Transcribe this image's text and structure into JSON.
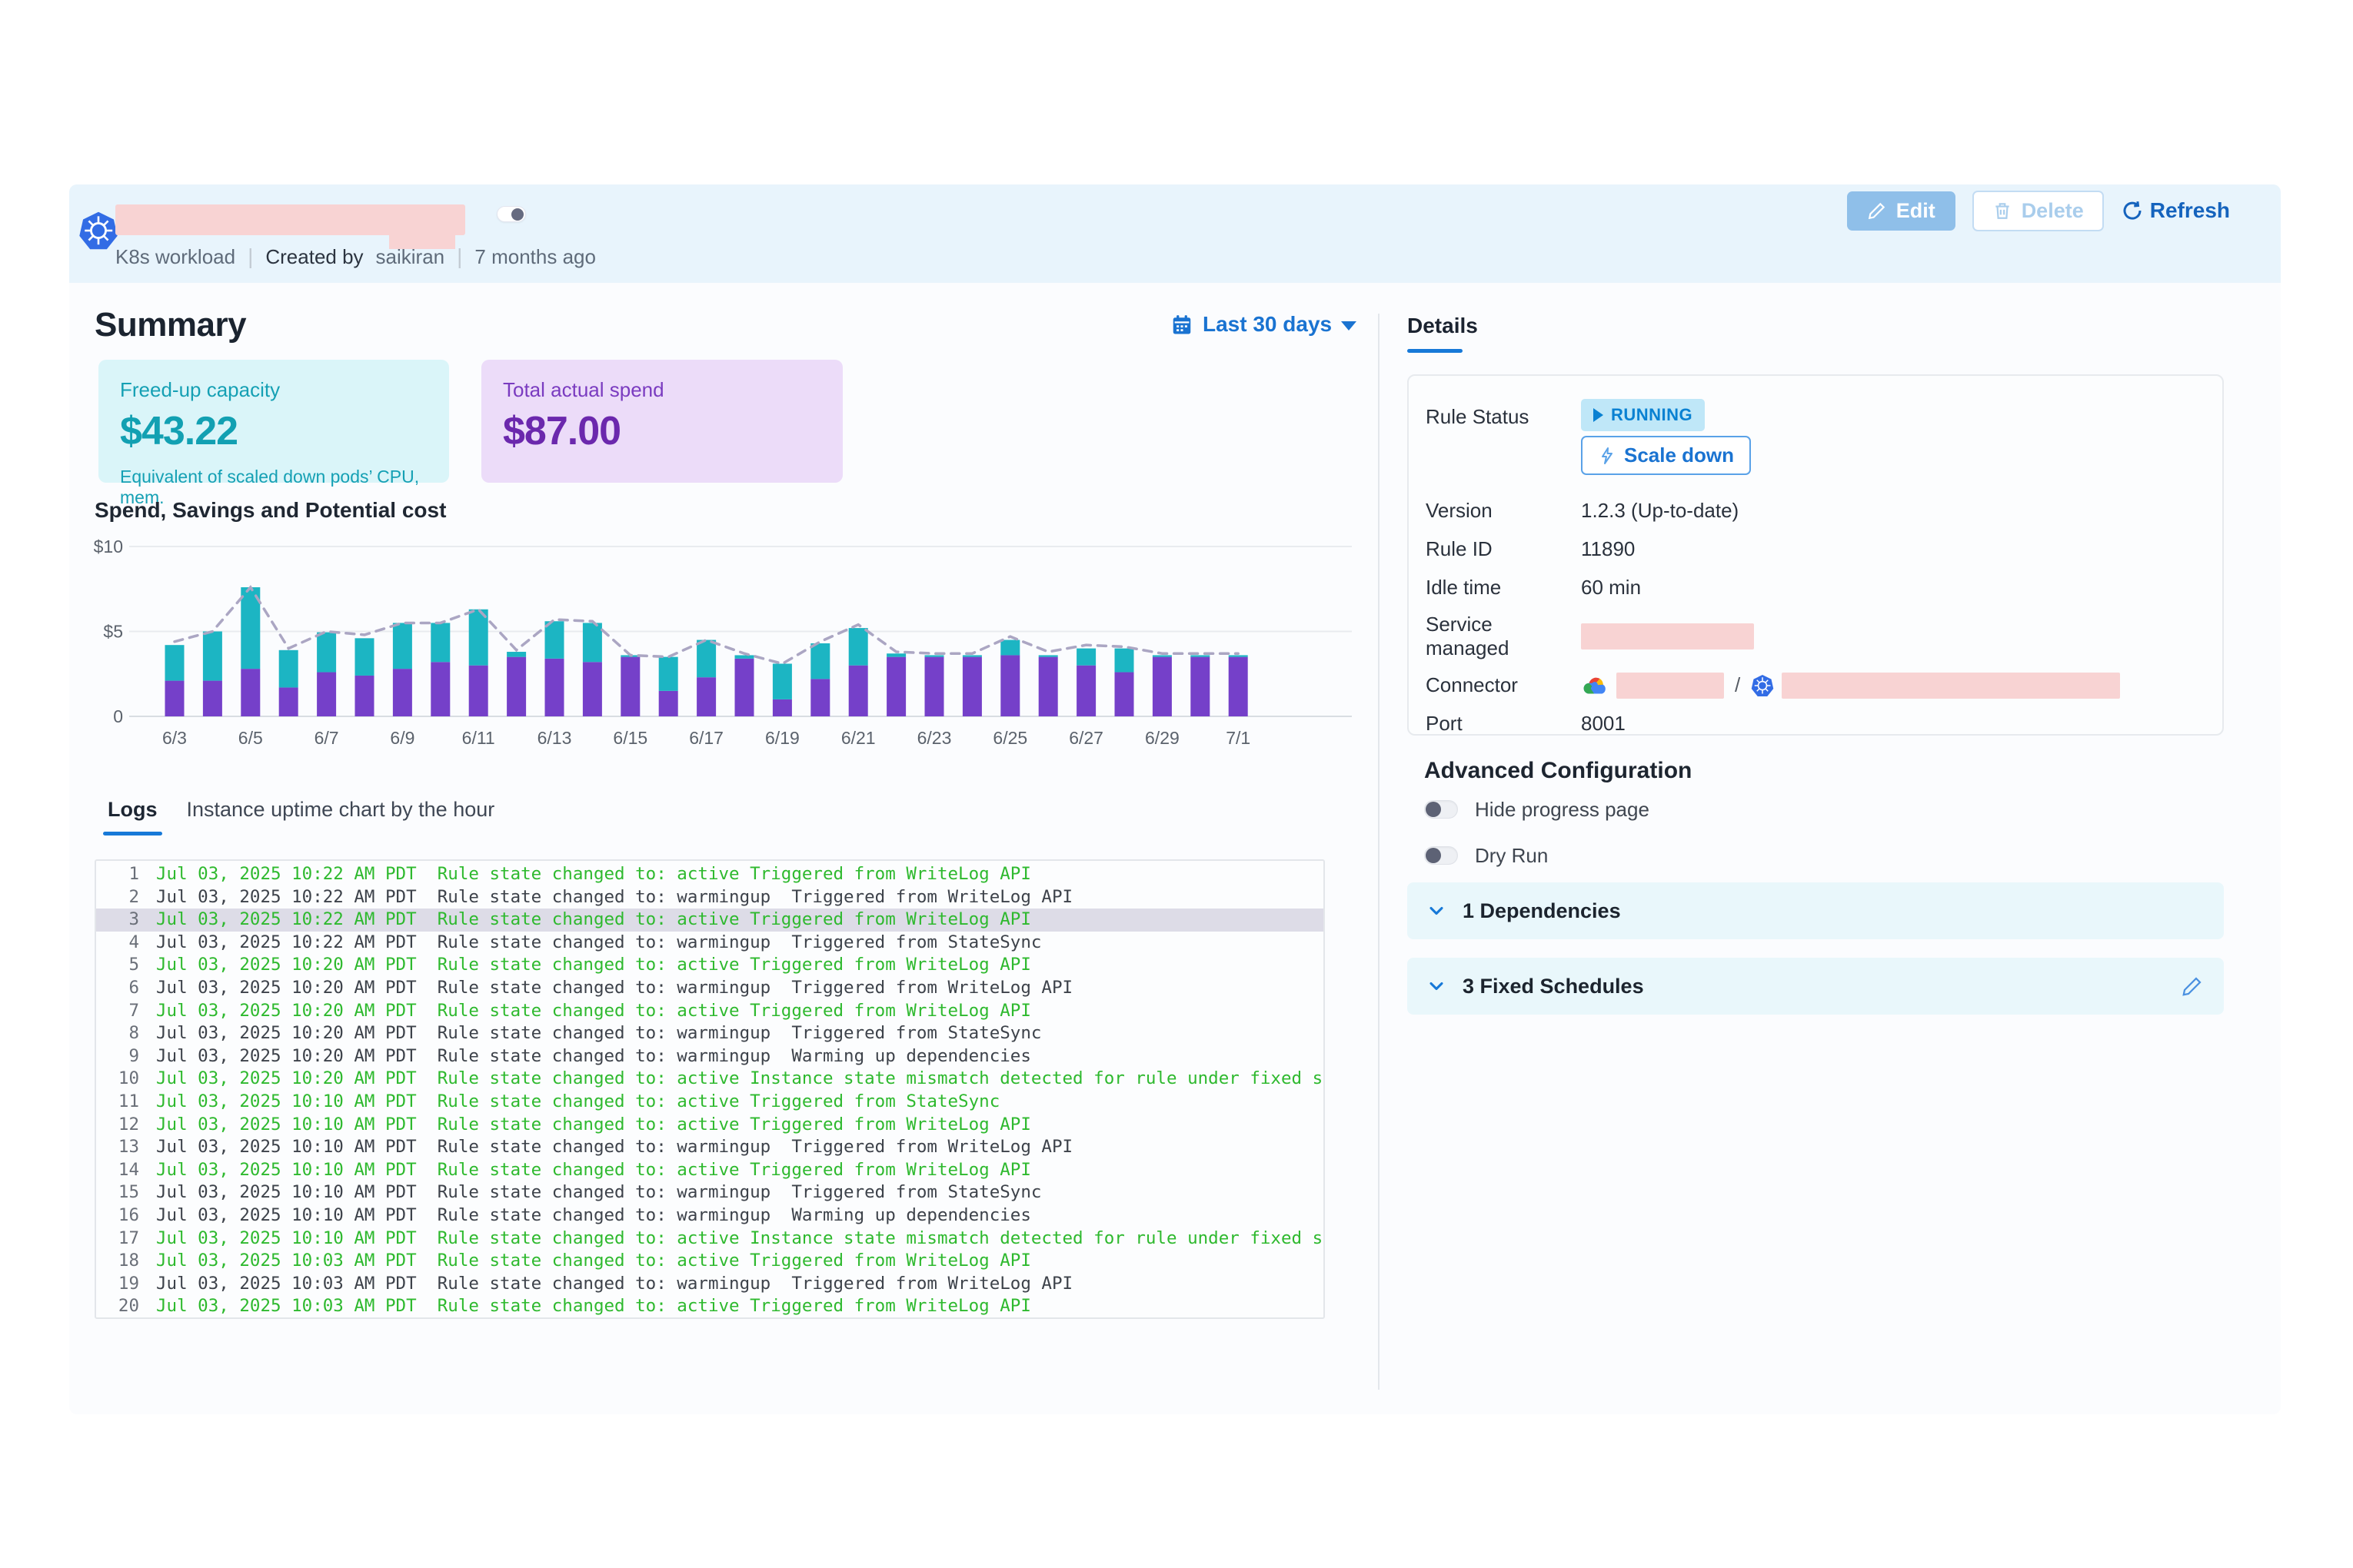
{
  "header": {
    "workload_type": "K8s workload",
    "created_by_label": "Created by",
    "created_by": "saikiran",
    "created_ago": "7 months ago",
    "edit_label": "Edit",
    "delete_label": "Delete",
    "refresh_label": "Refresh"
  },
  "summary": {
    "title": "Summary",
    "date_range": "Last 30 days",
    "cards": [
      {
        "label": "Freed-up capacity",
        "value": "$43.22",
        "note": "Equivalent of scaled down pods’ CPU, mem.",
        "accent": "#12a0b2",
        "bg": "#daf5f9"
      },
      {
        "label": "Total actual spend",
        "value": "$87.00",
        "note": "",
        "accent": "#6b28ad",
        "bg": "#ecdcf9"
      }
    ]
  },
  "chart_data": {
    "type": "bar",
    "stacked": true,
    "title": "Spend, Savings and Potential cost",
    "categories": [
      "6/3",
      "6/4",
      "6/5",
      "6/6",
      "6/7",
      "6/8",
      "6/9",
      "6/10",
      "6/11",
      "6/12",
      "6/13",
      "6/14",
      "6/15",
      "6/16",
      "6/17",
      "6/18",
      "6/19",
      "6/20",
      "6/21",
      "6/22",
      "6/23",
      "6/24",
      "6/25",
      "6/26",
      "6/27",
      "6/28",
      "6/29",
      "6/30",
      "7/1"
    ],
    "x_tick_labels": [
      "6/3",
      "6/5",
      "6/7",
      "6/9",
      "6/11",
      "6/13",
      "6/15",
      "6/17",
      "6/19",
      "6/21",
      "6/23",
      "6/25",
      "6/27",
      "6/29",
      "7/1"
    ],
    "series": [
      {
        "name": "Spend",
        "type": "bar",
        "color": "#7540c9",
        "values": [
          2.1,
          2.1,
          2.8,
          1.7,
          2.6,
          2.4,
          2.8,
          3.2,
          3.0,
          3.5,
          3.4,
          3.2,
          3.5,
          1.5,
          2.3,
          3.4,
          1.0,
          2.2,
          3.0,
          3.5,
          3.5,
          3.5,
          3.6,
          3.5,
          3.0,
          2.6,
          3.5,
          3.5,
          3.5
        ]
      },
      {
        "name": "Savings",
        "type": "bar",
        "color": "#1cb5c3",
        "values": [
          2.1,
          2.9,
          4.8,
          2.2,
          2.35,
          2.2,
          2.7,
          2.3,
          3.3,
          0.3,
          2.2,
          2.3,
          0.1,
          2.0,
          2.2,
          0.2,
          2.1,
          2.1,
          2.2,
          0.2,
          0.1,
          0.1,
          0.9,
          0.1,
          1.0,
          1.4,
          0.1,
          0.1,
          0.1
        ]
      },
      {
        "name": "Potential cost",
        "type": "line",
        "style": "dashed",
        "color": "#aba6c3",
        "values": [
          4.4,
          5.0,
          7.6,
          4.0,
          5.0,
          4.8,
          5.5,
          5.5,
          6.3,
          3.9,
          5.7,
          5.6,
          3.6,
          3.5,
          4.5,
          3.7,
          3.1,
          4.4,
          5.4,
          3.8,
          3.7,
          3.7,
          4.7,
          3.8,
          4.2,
          4.1,
          3.7,
          3.7,
          3.7
        ]
      }
    ],
    "ylim": [
      0,
      10
    ],
    "y_ticks": [
      {
        "label": "$10",
        "value": 10
      },
      {
        "label": "$5",
        "value": 5
      },
      {
        "label": "0",
        "value": 0
      }
    ],
    "grid": true,
    "legend": "none"
  },
  "tabs": {
    "logs": "Logs",
    "uptime": "Instance uptime chart by the hour"
  },
  "logs": {
    "selected_row": 3,
    "rows": [
      {
        "n": 1,
        "time": "Jul 03, 2025 10:22 AM PDT",
        "msg": "Rule state changed to: active Triggered from WriteLog API",
        "active": true
      },
      {
        "n": 2,
        "time": "Jul 03, 2025 10:22 AM PDT",
        "msg": "Rule state changed to: warmingup  Triggered from WriteLog API",
        "active": false
      },
      {
        "n": 3,
        "time": "Jul 03, 2025 10:22 AM PDT",
        "msg": "Rule state changed to: active Triggered from WriteLog API",
        "active": true
      },
      {
        "n": 4,
        "time": "Jul 03, 2025 10:22 AM PDT",
        "msg": "Rule state changed to: warmingup  Triggered from StateSync",
        "active": false
      },
      {
        "n": 5,
        "time": "Jul 03, 2025 10:20 AM PDT",
        "msg": "Rule state changed to: active Triggered from WriteLog API",
        "active": true
      },
      {
        "n": 6,
        "time": "Jul 03, 2025 10:20 AM PDT",
        "msg": "Rule state changed to: warmingup  Triggered from WriteLog API",
        "active": false
      },
      {
        "n": 7,
        "time": "Jul 03, 2025 10:20 AM PDT",
        "msg": "Rule state changed to: active Triggered from WriteLog API",
        "active": true
      },
      {
        "n": 8,
        "time": "Jul 03, 2025 10:20 AM PDT",
        "msg": "Rule state changed to: warmingup  Triggered from StateSync",
        "active": false
      },
      {
        "n": 9,
        "time": "Jul 03, 2025 10:20 AM PDT",
        "msg": "Rule state changed to: warmingup  Warming up dependencies",
        "active": false
      },
      {
        "n": 10,
        "time": "Jul 03, 2025 10:20 AM PDT",
        "msg": "Rule state changed to: active Instance state mismatch detected for rule under fixed schedule. Warming up",
        "active": true
      },
      {
        "n": 11,
        "time": "Jul 03, 2025 10:10 AM PDT",
        "msg": "Rule state changed to: active Triggered from StateSync",
        "active": true
      },
      {
        "n": 12,
        "time": "Jul 03, 2025 10:10 AM PDT",
        "msg": "Rule state changed to: active Triggered from WriteLog API",
        "active": true
      },
      {
        "n": 13,
        "time": "Jul 03, 2025 10:10 AM PDT",
        "msg": "Rule state changed to: warmingup  Triggered from WriteLog API",
        "active": false
      },
      {
        "n": 14,
        "time": "Jul 03, 2025 10:10 AM PDT",
        "msg": "Rule state changed to: active Triggered from WriteLog API",
        "active": true
      },
      {
        "n": 15,
        "time": "Jul 03, 2025 10:10 AM PDT",
        "msg": "Rule state changed to: warmingup  Triggered from StateSync",
        "active": false
      },
      {
        "n": 16,
        "time": "Jul 03, 2025 10:10 AM PDT",
        "msg": "Rule state changed to: warmingup  Warming up dependencies",
        "active": false
      },
      {
        "n": 17,
        "time": "Jul 03, 2025 10:10 AM PDT",
        "msg": "Rule state changed to: active Instance state mismatch detected for rule under fixed schedule. Warming up",
        "active": true
      },
      {
        "n": 18,
        "time": "Jul 03, 2025 10:03 AM PDT",
        "msg": "Rule state changed to: active Triggered from WriteLog API",
        "active": true
      },
      {
        "n": 19,
        "time": "Jul 03, 2025 10:03 AM PDT",
        "msg": "Rule state changed to: warmingup  Triggered from WriteLog API",
        "active": false
      },
      {
        "n": 20,
        "time": "Jul 03, 2025 10:03 AM PDT",
        "msg": "Rule state changed to: active Triggered from WriteLog API",
        "active": true
      }
    ]
  },
  "details": {
    "tab_label": "Details",
    "rule_status_label": "Rule Status",
    "rule_status": "RUNNING",
    "scale_down_label": "Scale down",
    "rows": [
      {
        "label": "Version",
        "value": "1.2.3 (Up-to-date)",
        "type": "text"
      },
      {
        "label": "Rule ID",
        "value": "11890",
        "type": "text"
      },
      {
        "label": "Idle time",
        "value": "60 min",
        "type": "text"
      },
      {
        "label": "Service managed",
        "value": "",
        "type": "redacted"
      },
      {
        "label": "Connector",
        "value": "",
        "type": "connector"
      },
      {
        "label": "Port",
        "value": "8001",
        "type": "text"
      }
    ],
    "status_colors": {
      "badge_bg": "#bfe7f8",
      "badge_text": "#0981d2"
    }
  },
  "advanced": {
    "title": "Advanced Configuration",
    "toggles": [
      {
        "label": "Hide progress page",
        "on": false
      },
      {
        "label": "Dry Run",
        "on": false
      }
    ],
    "panels": [
      {
        "label": "1 Dependencies",
        "editable": false
      },
      {
        "label": "3 Fixed Schedules",
        "editable": true
      }
    ]
  },
  "colors": {
    "accent_blue": "#1a73d1",
    "header_bg": "#e8f4fc",
    "redaction_pink": "#f8d3d3",
    "log_green": "#2eb92e",
    "panel_bg": "#e9f7fb"
  }
}
